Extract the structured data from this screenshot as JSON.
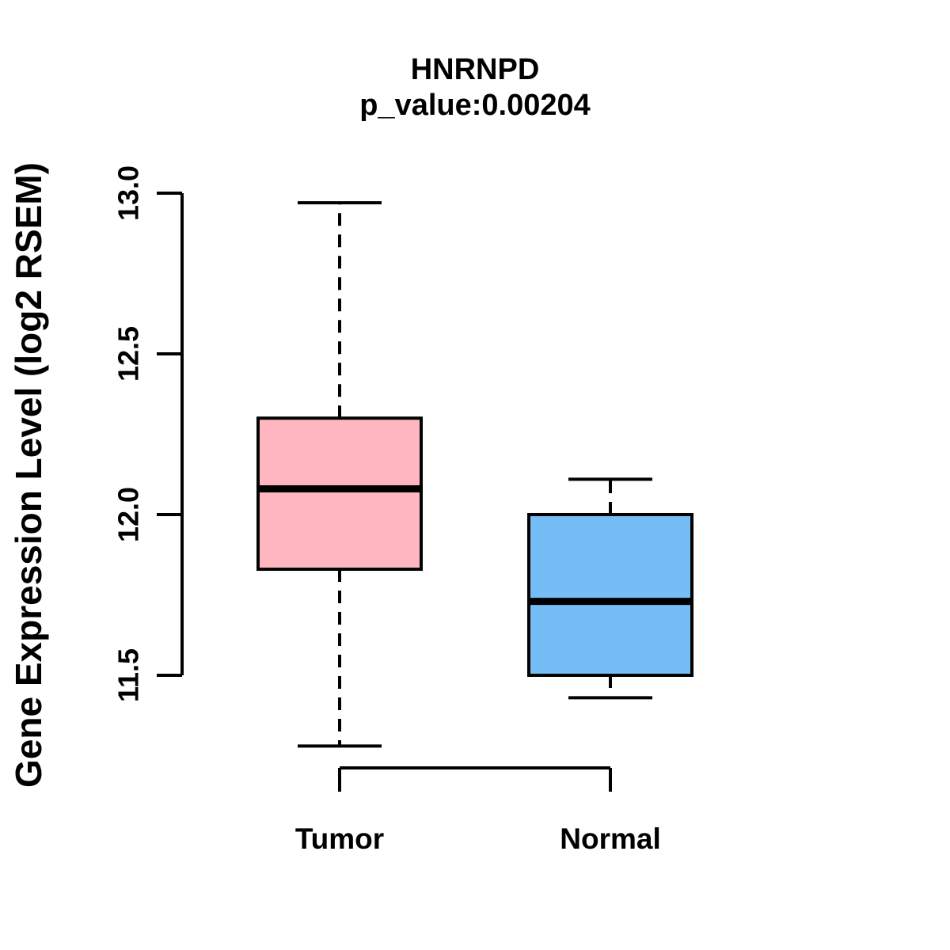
{
  "title": {
    "gene": "HNRNPD",
    "pvalue_line": "p_value:0.00204"
  },
  "chart_data": {
    "type": "boxplot",
    "title": "HNRNPD",
    "subtitle": "p_value:0.00204",
    "ylabel": "Gene Expression Level (log2 RSEM)",
    "xlabel": "",
    "yticks": [
      11.5,
      12.0,
      12.5,
      13.0
    ],
    "axis_value_range": [
      11.5,
      13.0
    ],
    "grid": false,
    "legend": "none",
    "categories": [
      "Tumor",
      "Normal"
    ],
    "series": [
      {
        "name": "Tumor",
        "box_color": "#FFB6C1",
        "whisker_low": 11.28,
        "q1": 11.83,
        "median": 12.08,
        "q3": 12.3,
        "whisker_high": 12.97
      },
      {
        "name": "Normal",
        "box_color": "#75BEF5",
        "whisker_low": 11.43,
        "q1": 11.5,
        "median": 11.73,
        "q3": 12.0,
        "whisker_high": 12.11
      }
    ],
    "line_color": "#000000",
    "background_color": "#FFFFFF"
  }
}
